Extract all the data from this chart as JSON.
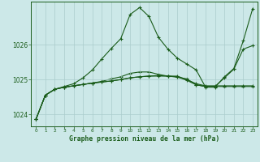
{
  "title": "Graphe pression niveau de la mer (hPa)",
  "bg_color": "#cce8e8",
  "grid_color": "#aacccc",
  "line_color": "#1a5c1a",
  "xlim": [
    -0.5,
    23.5
  ],
  "ylim": [
    1023.65,
    1027.25
  ],
  "yticks": [
    1024,
    1025,
    1026
  ],
  "xticks": [
    0,
    1,
    2,
    3,
    4,
    5,
    6,
    7,
    8,
    9,
    10,
    11,
    12,
    13,
    14,
    15,
    16,
    17,
    18,
    19,
    20,
    21,
    22,
    23
  ],
  "line1_x": [
    0,
    1,
    2,
    3,
    4,
    5,
    6,
    7,
    8,
    9,
    10,
    11,
    12,
    13,
    14,
    15,
    16,
    17,
    18,
    19,
    20,
    21,
    22,
    23
  ],
  "line1_y": [
    1023.85,
    1024.55,
    1024.72,
    1024.78,
    1024.82,
    1024.86,
    1024.9,
    1024.93,
    1024.96,
    1025.0,
    1025.05,
    1025.08,
    1025.1,
    1025.1,
    1025.1,
    1025.1,
    1025.0,
    1024.88,
    1024.82,
    1024.82,
    1024.82,
    1024.82,
    1024.82,
    1024.82
  ],
  "line2_x": [
    0,
    1,
    2,
    3,
    4,
    5,
    6,
    7,
    8,
    9,
    10,
    11,
    12,
    13,
    14,
    15,
    16,
    17,
    18,
    19,
    20,
    21,
    22,
    23
  ],
  "line2_y": [
    1023.85,
    1024.55,
    1024.72,
    1024.8,
    1024.88,
    1025.05,
    1025.28,
    1025.6,
    1025.9,
    1026.18,
    1026.88,
    1027.08,
    1026.82,
    1026.22,
    1025.88,
    1025.62,
    1025.45,
    1025.28,
    1024.78,
    1024.78,
    1025.08,
    1025.32,
    1026.12,
    1027.05
  ],
  "line3_x": [
    0,
    1,
    2,
    3,
    4,
    5,
    6,
    7,
    8,
    9,
    10,
    11,
    12,
    13,
    14,
    15,
    16,
    17,
    18,
    19,
    20,
    21,
    22,
    23
  ],
  "line3_y": [
    1023.85,
    1024.55,
    1024.72,
    1024.78,
    1024.82,
    1024.86,
    1024.9,
    1024.93,
    1024.96,
    1025.0,
    1025.05,
    1025.08,
    1025.1,
    1025.12,
    1025.1,
    1025.08,
    1024.98,
    1024.85,
    1024.8,
    1024.8,
    1025.05,
    1025.3,
    1025.88,
    1025.98
  ],
  "line4_x": [
    0,
    1,
    2,
    3,
    4,
    5,
    6,
    7,
    8,
    9,
    10,
    11,
    12,
    13,
    14,
    15,
    16,
    17,
    18,
    19,
    20,
    21,
    22,
    23
  ],
  "line4_y": [
    1023.85,
    1024.55,
    1024.72,
    1024.78,
    1024.82,
    1024.86,
    1024.9,
    1024.95,
    1025.02,
    1025.08,
    1025.18,
    1025.22,
    1025.22,
    1025.15,
    1025.1,
    1025.07,
    1025.02,
    1024.85,
    1024.8,
    1024.8,
    1024.8,
    1024.8,
    1024.8,
    1024.8
  ]
}
